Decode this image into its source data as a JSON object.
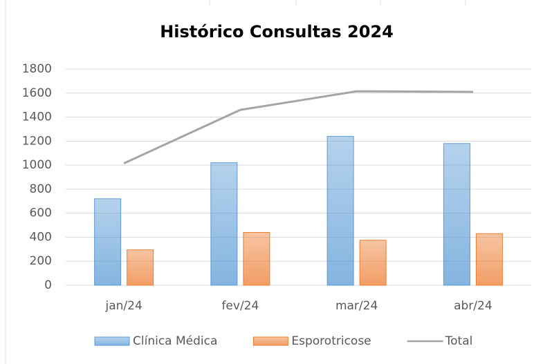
{
  "chart_data": {
    "type": "bar",
    "title": "Histórico Consultas 2024",
    "categories": [
      "jan/24",
      "fev/24",
      "mar/24",
      "abr/24"
    ],
    "series": [
      {
        "name": "Clínica Médica",
        "type": "bar",
        "color": "#5b9bd5",
        "values": [
          720,
          1020,
          1240,
          1180
        ]
      },
      {
        "name": "Esporotricose",
        "type": "bar",
        "color": "#ed7d31",
        "values": [
          295,
          440,
          375,
          430
        ]
      },
      {
        "name": "Total",
        "type": "line",
        "color": "#a5a5a5",
        "values": [
          1015,
          1460,
          1615,
          1610
        ]
      }
    ],
    "ylim": [
      0,
      1800
    ],
    "yticks": [
      0,
      200,
      400,
      600,
      800,
      1000,
      1200,
      1400,
      1600,
      1800
    ],
    "grid": true,
    "legend": "bottom"
  }
}
